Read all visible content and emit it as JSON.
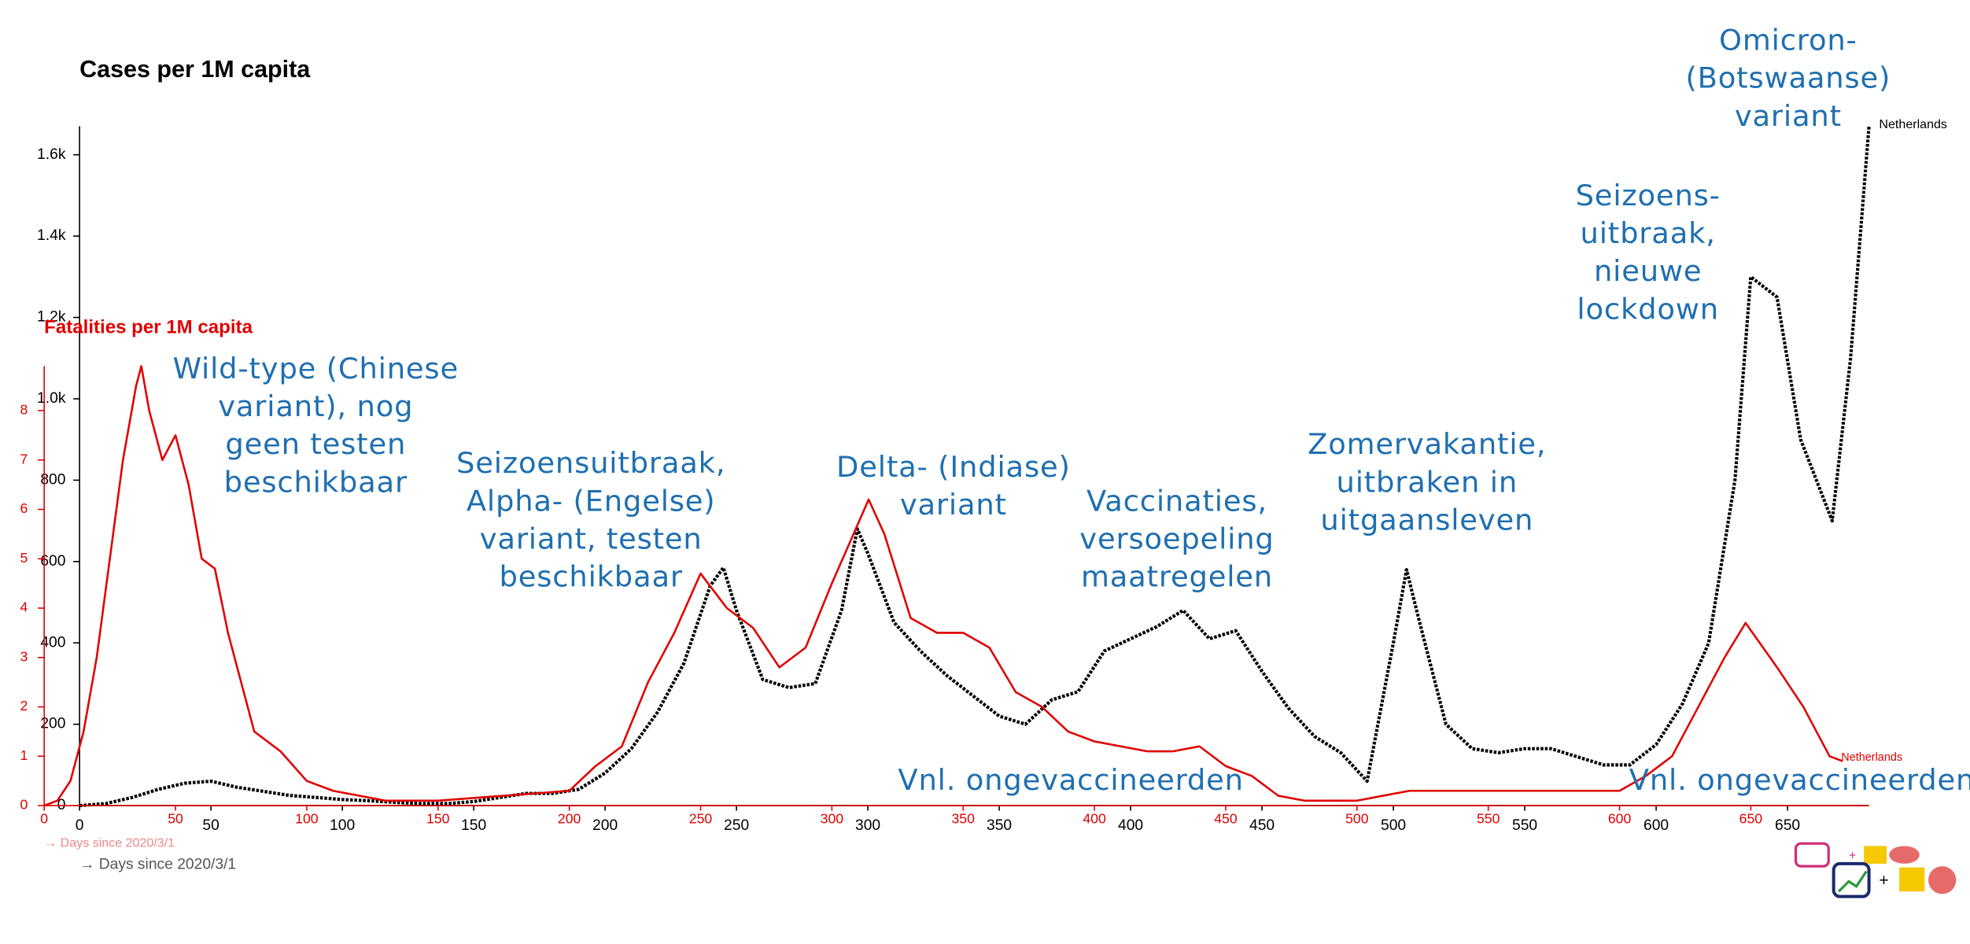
{
  "chart_data": [
    {
      "type": "line",
      "title": "Cases per 1M capita",
      "xlabel": "→ Days since 2020/3/1",
      "xlim": [
        0,
        681
      ],
      "ylim": [
        0,
        1670
      ],
      "xticks": [
        0,
        50,
        100,
        150,
        200,
        250,
        300,
        350,
        400,
        450,
        500,
        550,
        600,
        650
      ],
      "yticks": [
        0,
        200,
        400,
        600,
        800,
        {
          "value": 1000,
          "label": "1.0k"
        },
        {
          "value": 1200,
          "label": "1.2k"
        },
        {
          "value": 1400,
          "label": "1.4k"
        },
        {
          "value": 1600,
          "label": "1.6k"
        }
      ],
      "series": [
        {
          "name": "Netherlands",
          "color": "#000000",
          "x": [
            0,
            10,
            20,
            30,
            40,
            50,
            60,
            70,
            80,
            90,
            100,
            110,
            120,
            130,
            140,
            150,
            160,
            170,
            180,
            190,
            200,
            210,
            220,
            230,
            240,
            245,
            250,
            260,
            270,
            280,
            290,
            296,
            300,
            310,
            320,
            330,
            340,
            350,
            360,
            370,
            380,
            390,
            400,
            410,
            420,
            430,
            440,
            450,
            460,
            470,
            480,
            490,
            500,
            505,
            510,
            520,
            530,
            540,
            550,
            560,
            570,
            580,
            590,
            600,
            610,
            620,
            630,
            636,
            646,
            655,
            667,
            674,
            681
          ],
          "values": [
            0,
            5,
            20,
            40,
            55,
            60,
            45,
            35,
            25,
            20,
            15,
            12,
            8,
            5,
            5,
            10,
            20,
            30,
            30,
            40,
            80,
            140,
            230,
            350,
            540,
            585,
            480,
            310,
            290,
            300,
            480,
            680,
            620,
            450,
            380,
            320,
            270,
            220,
            200,
            260,
            280,
            380,
            410,
            440,
            480,
            410,
            430,
            330,
            240,
            170,
            130,
            60,
            400,
            580,
            450,
            200,
            140,
            130,
            140,
            140,
            120,
            100,
            100,
            150,
            250,
            400,
            800,
            1300,
            1250,
            900,
            700,
            1100,
            1670
          ]
        }
      ]
    },
    {
      "type": "line",
      "title": "Fatalities per 1M capita",
      "xlabel": "→ Days since 2020/3/1",
      "xlim": [
        0,
        695
      ],
      "ylim": [
        0,
        8.9
      ],
      "xticks": [
        0,
        50,
        100,
        150,
        200,
        250,
        300,
        350,
        400,
        450,
        500,
        550,
        600,
        650
      ],
      "yticks": [
        0,
        1,
        2,
        3,
        4,
        5,
        6,
        7,
        8
      ],
      "series": [
        {
          "name": "Netherlands",
          "color": "#e00000",
          "x": [
            0,
            5,
            10,
            15,
            20,
            25,
            30,
            35,
            37,
            40,
            45,
            50,
            55,
            60,
            65,
            70,
            75,
            80,
            90,
            100,
            110,
            120,
            130,
            150,
            200,
            210,
            220,
            230,
            240,
            250,
            260,
            270,
            280,
            290,
            300,
            314,
            320,
            330,
            340,
            350,
            360,
            370,
            380,
            390,
            400,
            410,
            420,
            430,
            440,
            450,
            460,
            470,
            480,
            500,
            520,
            540,
            560,
            580,
            600,
            610,
            620,
            630,
            640,
            648,
            660,
            670,
            680,
            685
          ],
          "values": [
            0,
            0.1,
            0.5,
            1.5,
            3,
            5,
            7,
            8.5,
            8.9,
            8,
            7,
            7.5,
            6.5,
            5,
            4.8,
            3.5,
            2.5,
            1.5,
            1.1,
            0.5,
            0.3,
            0.2,
            0.1,
            0.1,
            0.3,
            0.8,
            1.2,
            2.5,
            3.5,
            4.7,
            4,
            3.6,
            2.8,
            3.2,
            4.5,
            6.2,
            5.5,
            3.8,
            3.5,
            3.5,
            3.2,
            2.3,
            2,
            1.5,
            1.3,
            1.2,
            1.1,
            1.1,
            1.2,
            0.8,
            0.6,
            0.2,
            0.1,
            0.1,
            0.3,
            0.3,
            0.3,
            0.3,
            0.3,
            0.6,
            1,
            2,
            3,
            3.7,
            2.8,
            2,
            1,
            0.9
          ]
        }
      ]
    }
  ],
  "annotations": [
    [
      "Wild-type (Chinese",
      "variant), nog",
      "geen testen",
      "beschikbaar"
    ],
    [
      "Seizoensuitbraak,",
      "Alpha- (Engelse)",
      "variant, testen",
      "beschikbaar"
    ],
    [
      "Delta- (Indiase)",
      "variant"
    ],
    [
      "Vaccinaties,",
      "versoepeling",
      "maatregelen"
    ],
    [
      "Zomervakantie,",
      "uitbraken in",
      "uitgaansleven"
    ],
    [
      "Seizoens-",
      "uitbraak,",
      "nieuwe",
      "lockdown"
    ],
    [
      "Omicron-",
      "(Botswaanse)",
      "variant"
    ],
    [
      "Vnl. ongevaccineerden"
    ],
    [
      "Vnl. ongevaccineerden"
    ]
  ]
}
